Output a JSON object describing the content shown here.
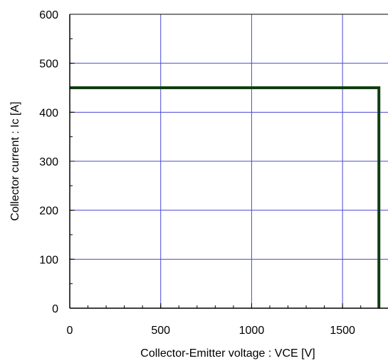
{
  "chart_data": {
    "type": "line",
    "title": "",
    "xlabel": "Collector-Emitter voltage : VCE [V]",
    "ylabel": "Collector current : Ic [A]",
    "xlim": [
      0,
      1750
    ],
    "ylim": [
      0,
      600
    ],
    "x_ticks": [
      0,
      500,
      1000,
      1500
    ],
    "y_ticks": [
      0,
      100,
      200,
      300,
      400,
      500,
      600
    ],
    "x_tick_labels": [
      "0",
      "500",
      "1000",
      "1500"
    ],
    "y_tick_labels": [
      "0",
      "100",
      "200",
      "300",
      "400",
      "500",
      "600"
    ],
    "x_minor_step": 100,
    "y_minor_step": 50,
    "grid": true,
    "legend": "none",
    "series": [
      {
        "x": [
          0,
          1700,
          1700
        ],
        "y": [
          450,
          450,
          0
        ]
      }
    ],
    "colors": {
      "series": "#0f3d0f",
      "grid": "#4a4ad6",
      "axis": "#000000"
    }
  }
}
